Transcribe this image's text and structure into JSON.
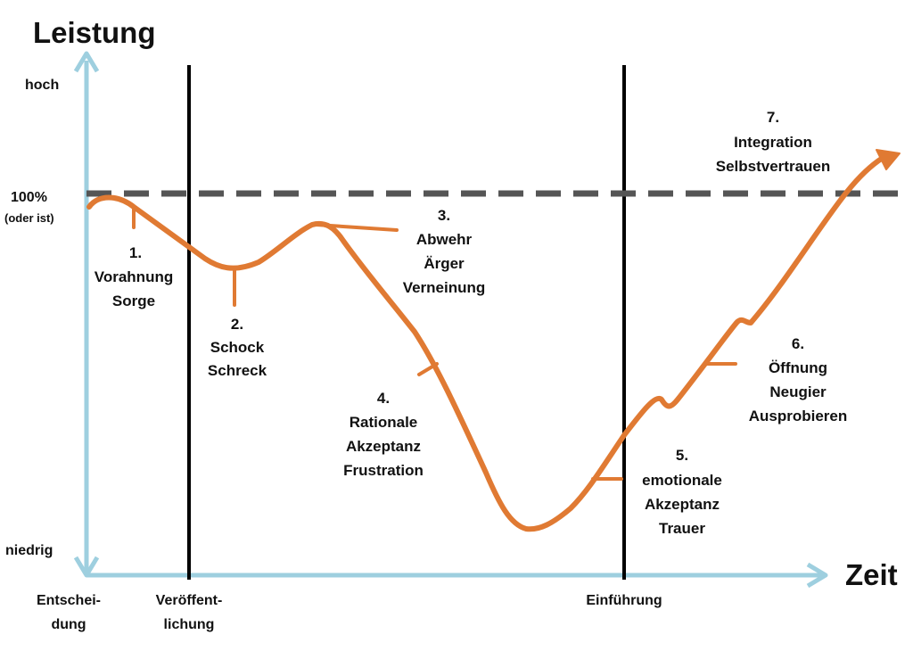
{
  "axes": {
    "y_title": "Leistung",
    "x_title": "Zeit",
    "y_high": "hoch",
    "y_low": "niedrig",
    "baseline_label": "100%",
    "baseline_sub": "(oder ist)"
  },
  "milestones": [
    {
      "line1": "Entschei-",
      "line2": "dung"
    },
    {
      "line1": "Veröffent-",
      "line2": "lichung"
    },
    {
      "line1": "Einführung",
      "line2": ""
    }
  ],
  "phases": [
    {
      "num": "1.",
      "line1": "Vorahnung",
      "line2": "Sorge"
    },
    {
      "num": "2.",
      "line1": "Schock",
      "line2": "Schreck"
    },
    {
      "num": "3.",
      "line1": "Abwehr",
      "line2": "Ärger",
      "line3": "Verneinung"
    },
    {
      "num": "4.",
      "line1": "Rationale",
      "line2": "Akzeptanz",
      "line3": "Frustration"
    },
    {
      "num": "5.",
      "line1": "emotionale",
      "line2": "Akzeptanz",
      "line3": "Trauer"
    },
    {
      "num": "6.",
      "line1": "Öffnung",
      "line2": "Neugier",
      "line3": "Ausprobieren"
    },
    {
      "num": "7.",
      "line1": "Integration",
      "line2": "Selbstvertrauen"
    }
  ],
  "colors": {
    "axis": "#9ecfdf",
    "curve": "#e07a33",
    "baseline": "#555555",
    "milestone": "#000000"
  }
}
